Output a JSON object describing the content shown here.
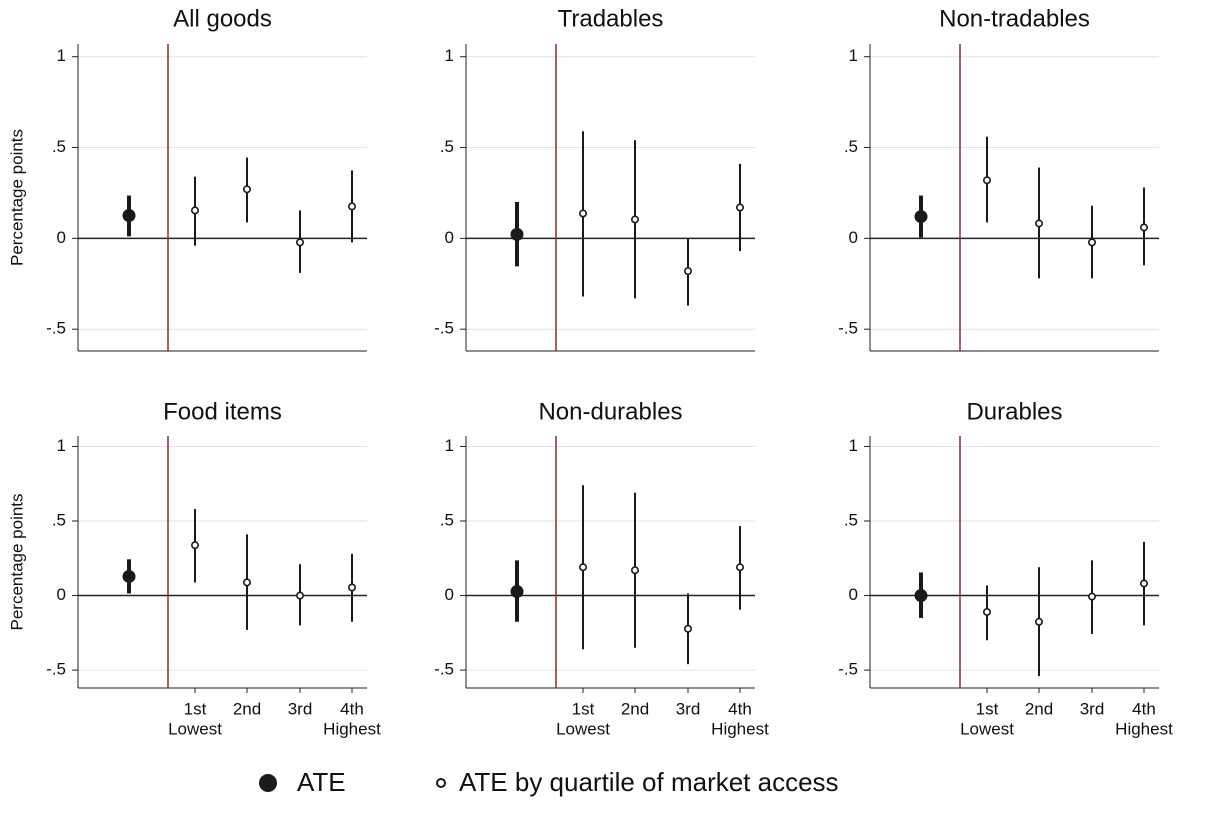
{
  "chart_data": [
    {
      "type": "errorbar",
      "title": "All goods",
      "ylabel": "Percentage points",
      "values": [
        0.126,
        0.154,
        0.27,
        -0.022,
        0.176
      ],
      "lower": [
        0.011,
        -0.04,
        0.088,
        -0.19,
        -0.022
      ],
      "upper": [
        0.236,
        0.34,
        0.445,
        0.154,
        0.374
      ],
      "ylim": [
        -0.62,
        1.07
      ],
      "yticks": [
        {
          "value": -0.5,
          "label": "-.5"
        },
        0,
        {
          "value": 0.5,
          "label": ".5"
        },
        1
      ],
      "grid": true
    },
    {
      "type": "errorbar",
      "title": "Tradables",
      "values": [
        0.022,
        0.137,
        0.104,
        -0.18,
        0.17
      ],
      "lower": [
        -0.154,
        -0.32,
        -0.33,
        -0.37,
        -0.07
      ],
      "upper": [
        0.2,
        0.59,
        0.54,
        0,
        0.41
      ],
      "ylim": [
        -0.62,
        1.07
      ],
      "yticks": [
        {
          "value": -0.5,
          "label": "-.5"
        },
        0,
        {
          "value": 0.5,
          "label": ".5"
        },
        1
      ],
      "grid": true
    },
    {
      "type": "errorbar",
      "title": "Non-tradables",
      "values": [
        0.12,
        0.32,
        0.082,
        -0.022,
        0.06
      ],
      "lower": [
        0.005,
        0.088,
        -0.22,
        -0.22,
        -0.148
      ],
      "upper": [
        0.236,
        0.56,
        0.39,
        0.18,
        0.28
      ],
      "ylim": [
        -0.62,
        1.07
      ],
      "yticks": [
        {
          "value": -0.5,
          "label": "-.5"
        },
        0,
        {
          "value": 0.5,
          "label": ".5"
        },
        1
      ],
      "grid": true
    },
    {
      "type": "errorbar",
      "title": "Food items",
      "ylabel": "Percentage points",
      "categories": [
        null,
        "1st",
        "2nd",
        "3rd",
        "4th"
      ],
      "category_sublabels": [
        null,
        "Lowest",
        null,
        null,
        "Highest"
      ],
      "values": [
        0.128,
        0.338,
        0.088,
        0,
        0.054
      ],
      "lower": [
        0.014,
        0.088,
        -0.23,
        -0.2,
        -0.176
      ],
      "upper": [
        0.243,
        0.58,
        0.41,
        0.21,
        0.28
      ],
      "ylim": [
        -0.62,
        1.07
      ],
      "yticks": [
        {
          "value": -0.5,
          "label": "-.5"
        },
        0,
        {
          "value": 0.5,
          "label": ".5"
        },
        1
      ],
      "grid": true
    },
    {
      "type": "errorbar",
      "title": "Non-durables",
      "categories": [
        null,
        "1st",
        "2nd",
        "3rd",
        "4th"
      ],
      "category_sublabels": [
        null,
        "Lowest",
        null,
        null,
        "Highest"
      ],
      "values": [
        0.027,
        0.19,
        0.17,
        -0.223,
        0.19
      ],
      "lower": [
        -0.176,
        -0.36,
        -0.35,
        -0.46,
        -0.095
      ],
      "upper": [
        0.236,
        0.74,
        0.69,
        0.014,
        0.466
      ],
      "ylim": [
        -0.62,
        1.07
      ],
      "yticks": [
        {
          "value": -0.5,
          "label": "-.5"
        },
        0,
        {
          "value": 0.5,
          "label": ".5"
        },
        1
      ],
      "grid": true
    },
    {
      "type": "errorbar",
      "title": "Durables",
      "categories": [
        null,
        "1st",
        "2nd",
        "3rd",
        "4th"
      ],
      "category_sublabels": [
        null,
        "Lowest",
        null,
        null,
        "Highest"
      ],
      "values": [
        0,
        -0.11,
        -0.176,
        -0.007,
        0.081
      ],
      "lower": [
        -0.15,
        -0.3,
        -0.54,
        -0.257,
        -0.2
      ],
      "upper": [
        0.155,
        0.068,
        0.19,
        0.236,
        0.36
      ],
      "ylim": [
        -0.62,
        1.07
      ],
      "yticks": [
        {
          "value": -0.5,
          "label": "-.5"
        },
        0,
        {
          "value": 0.5,
          "label": ".5"
        },
        1
      ],
      "grid": true
    }
  ],
  "legend": [
    "ATE",
    "ATE by quartile of market access"
  ],
  "color": "#1a1a1a",
  "divider_color": "#8c2a2e"
}
